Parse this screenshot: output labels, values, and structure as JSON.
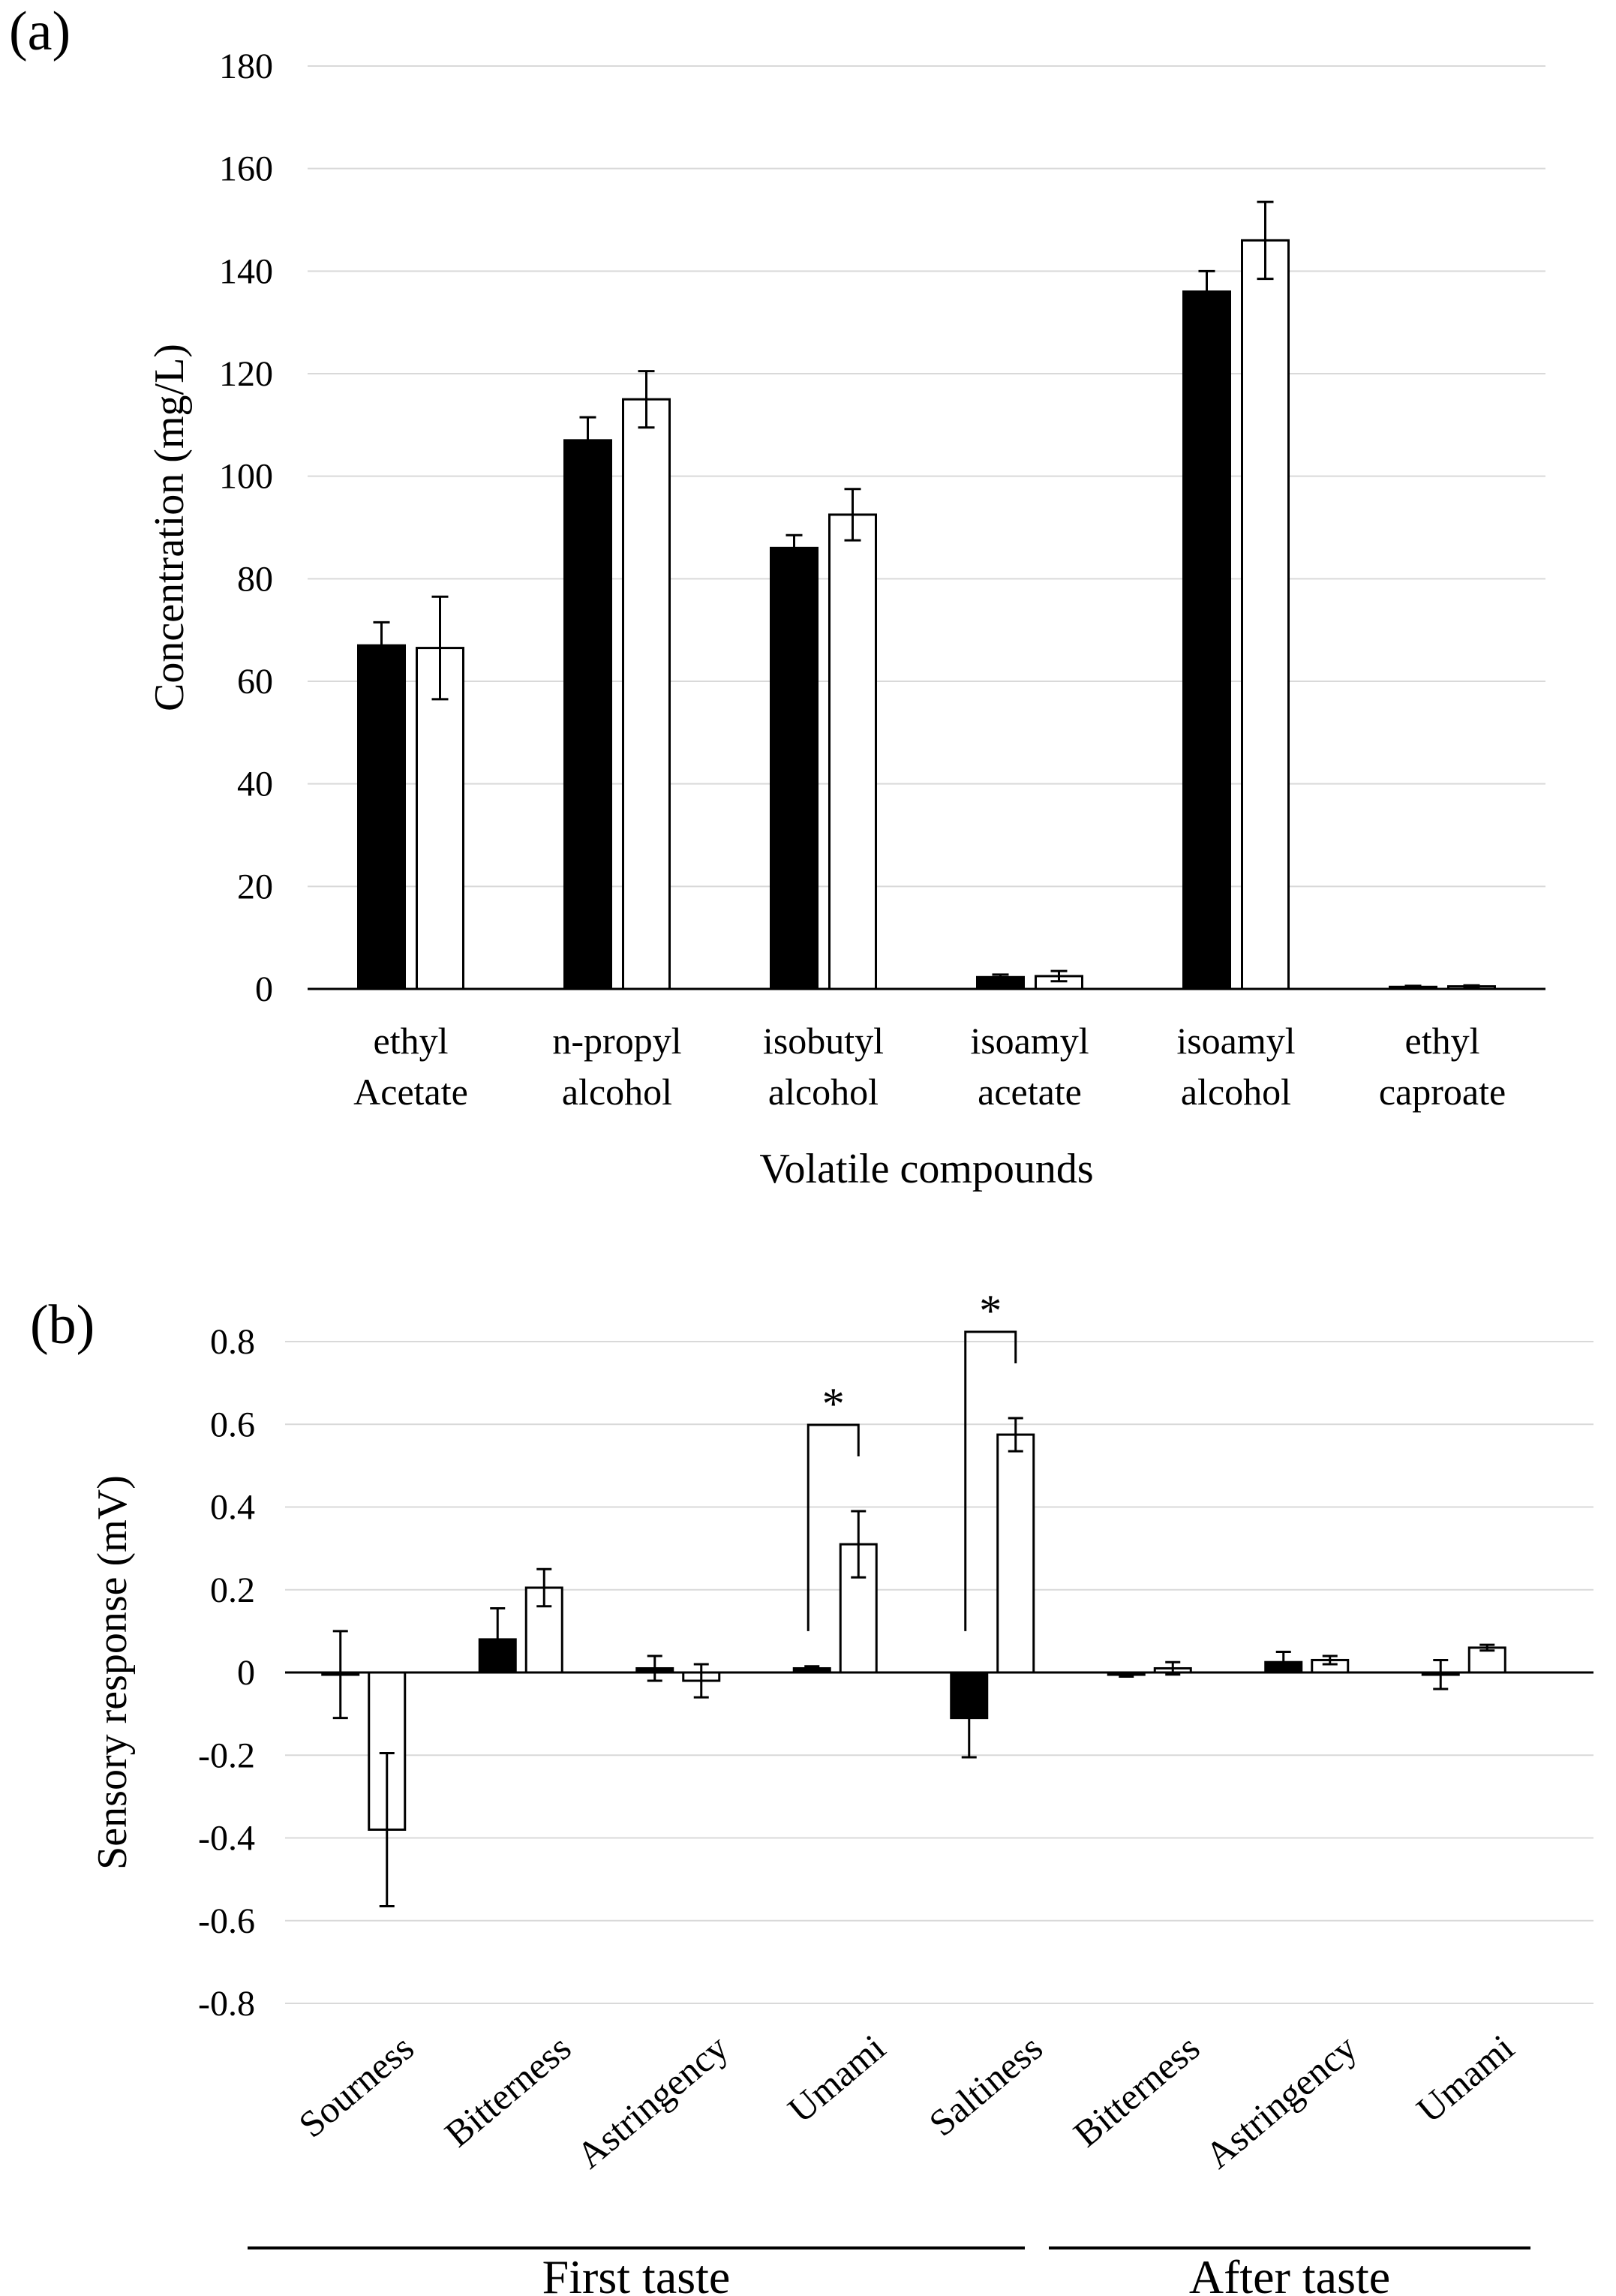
{
  "chart_data": [
    {
      "panel": "(a)",
      "type": "bar",
      "title": "",
      "xlabel": "Volatile compounds",
      "ylabel": "Concentration (mg/L)",
      "ylim": [
        0,
        180
      ],
      "yticks": [
        0,
        20,
        40,
        60,
        80,
        100,
        120,
        140,
        160,
        180
      ],
      "grid": true,
      "categories": [
        [
          "ethyl",
          "Acetate"
        ],
        [
          "n-propyl",
          "alcohol"
        ],
        [
          "isobutyl",
          "alcohol"
        ],
        [
          "isoamyl",
          "acetate"
        ],
        [
          "isoamyl",
          "alcohol"
        ],
        [
          "ethyl",
          "caproate"
        ]
      ],
      "series": [
        {
          "color": "#000000",
          "values": [
            67,
            107,
            86,
            2.3,
            136,
            0.4
          ],
          "errors": [
            4.5,
            4.5,
            2.5,
            0.5,
            4,
            0.2
          ]
        },
        {
          "color": "#ffffff",
          "values": [
            66.5,
            115,
            92.5,
            2.5,
            146,
            0.5
          ],
          "errors": [
            10,
            5.5,
            5,
            1,
            7.5,
            0.2
          ]
        }
      ]
    },
    {
      "panel": "(b)",
      "type": "bar",
      "title": "",
      "xlabel": "",
      "ylabel": "Sensory response (mV)",
      "ylim": [
        -0.8,
        0.8
      ],
      "yticks": [
        "-0.8",
        "-0.6",
        "-0.4",
        "-0.2",
        "0",
        "0.2",
        "0.4",
        "0.6",
        "0.8"
      ],
      "grid": true,
      "categories": [
        "Sourness",
        "Bitterness",
        "Astringency",
        "Umami",
        "Saltiness",
        "Bitterness",
        "Astringency",
        "Umami"
      ],
      "groups": [
        {
          "label": "First taste",
          "from": 0,
          "to": 4
        },
        {
          "label": "After taste",
          "from": 5,
          "to": 7
        }
      ],
      "series": [
        {
          "color": "#000000",
          "values": [
            -0.005,
            0.08,
            0.01,
            0.01,
            -0.11,
            -0.005,
            0.025,
            -0.005
          ],
          "errors": [
            0.105,
            0.075,
            0.03,
            0.005,
            0.095,
            0.005,
            0.025,
            0.035
          ]
        },
        {
          "color": "#ffffff",
          "values": [
            -0.38,
            0.205,
            -0.02,
            0.31,
            0.575,
            0.01,
            0.03,
            0.06
          ],
          "errors": [
            0.185,
            0.045,
            0.04,
            0.08,
            0.04,
            0.015,
            0.01,
            0.007
          ]
        }
      ],
      "annotations": [
        {
          "text": "*",
          "category": 3
        },
        {
          "text": "*",
          "category": 4
        }
      ]
    }
  ]
}
